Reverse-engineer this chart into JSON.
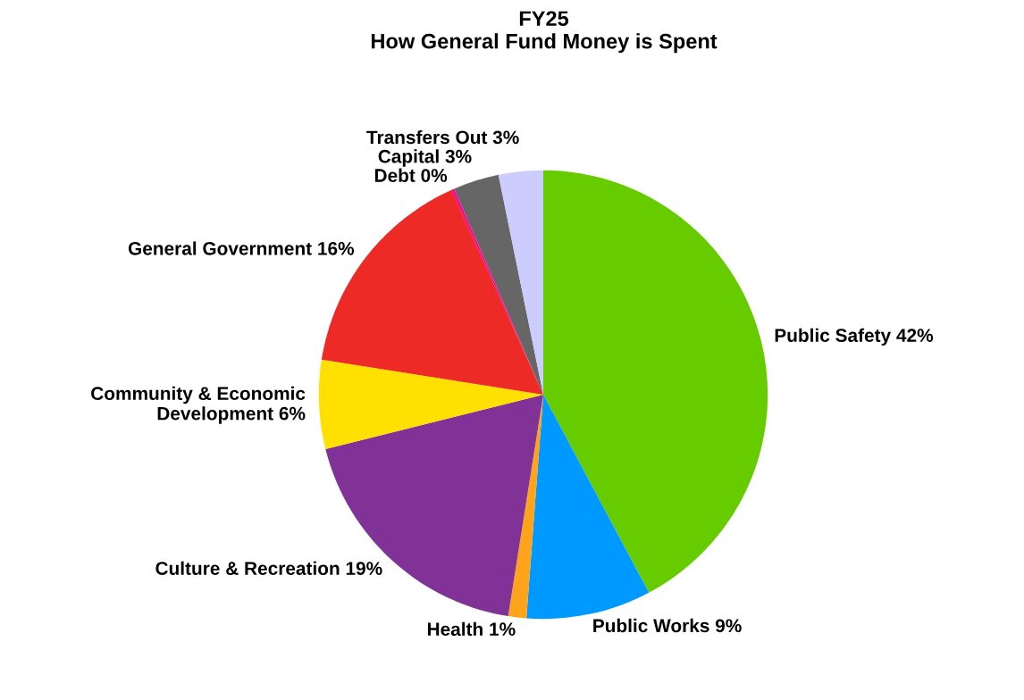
{
  "chart_data": {
    "type": "pie",
    "title": "FY25\nHow General Fund Money is Spent",
    "categories": [
      "Public Safety",
      "Public Works",
      "Health",
      "Culture & Recreation",
      "Community & Economic\nDevelopment",
      "General Government",
      "Debt",
      "Capital",
      "Transfers Out"
    ],
    "values": [
      42.2,
      9.0,
      1.3,
      18.6,
      6.4,
      15.8,
      0.2,
      3.3,
      3.2
    ],
    "value_labels": [
      "42%",
      "9%",
      "1%",
      "19%",
      "6%",
      "16%",
      "0%",
      "3%",
      "3%"
    ],
    "colors": [
      "#66cc00",
      "#0099ff",
      "#ffa31a",
      "#813296",
      "#ffe000",
      "#ee2a27",
      "#ff0099",
      "#666666",
      "#ccccff"
    ]
  }
}
